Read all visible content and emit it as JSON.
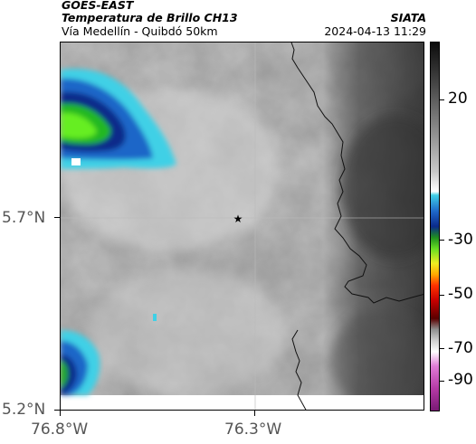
{
  "header": {
    "satellite": "GOES-EAST",
    "product": "Temperatura de Brillo CH13",
    "route": "Vía Medellín - Quibdó 50km",
    "agency": "SIATA",
    "datetime": "2024-04-13 11:29"
  },
  "axes": {
    "x_ticks": [
      "76.8°W",
      "76.3°W"
    ],
    "y_ticks": [
      "5.7°N",
      "5.2°N"
    ]
  },
  "marker": {
    "symbol": "★",
    "name": "route-center-star"
  },
  "colorbar": {
    "ticks": [
      "20",
      "-30",
      "-50",
      "-70",
      "-90"
    ]
  },
  "colors": {
    "cloud_gray": "#9a9a9a",
    "cold_cyan": "#3fd0e6",
    "cold_blue": "#0b2a8a",
    "cold_green": "#22dd22",
    "warm_dark": "#2a2a2a",
    "border": "#000000"
  }
}
